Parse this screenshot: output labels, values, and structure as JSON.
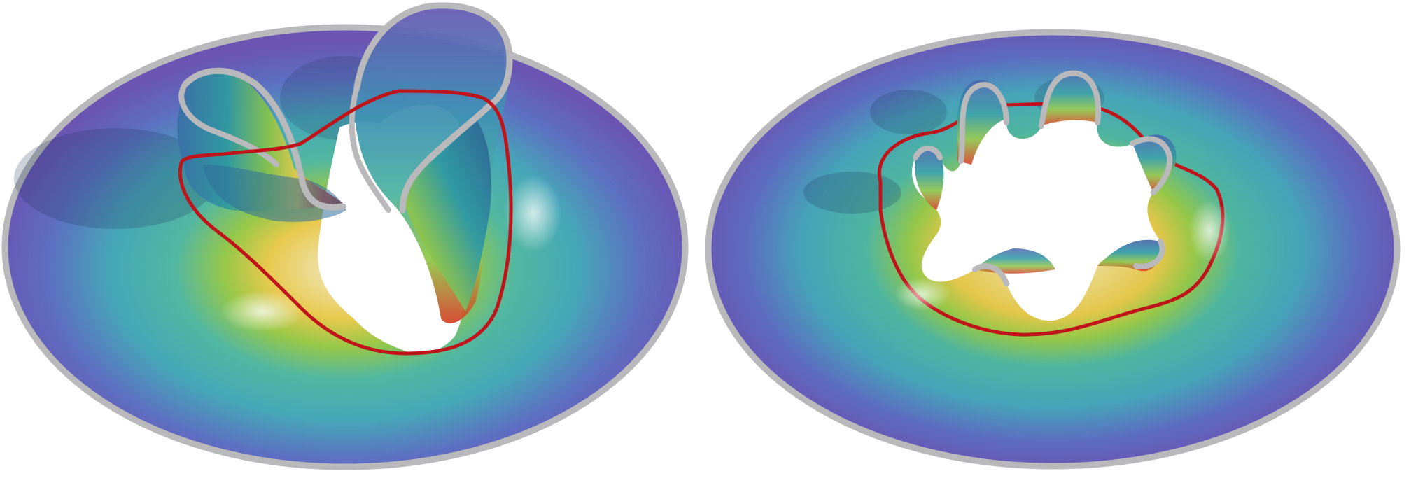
{
  "figure": {
    "panels": [
      {
        "id": "left",
        "description_name": "surface-with-two-handles",
        "colors": {
          "rim": "#b9b9bc",
          "boundary_curve": "#c0141b",
          "outer": "#6a5ab5",
          "mid": "#3fb3b0",
          "inner_green": "#7fc24a",
          "inner_yellow": "#e7d35a",
          "inner_red": "#d8452a"
        }
      },
      {
        "id": "right",
        "description_name": "surface-with-six-lobes",
        "colors": {
          "rim": "#b9b9bc",
          "boundary_curve": "#c0141b",
          "outer": "#6a5ab5",
          "mid": "#3fb3b0",
          "inner_green": "#7fc24a",
          "inner_yellow": "#e7d35a",
          "inner_red": "#d8452a"
        }
      }
    ]
  }
}
